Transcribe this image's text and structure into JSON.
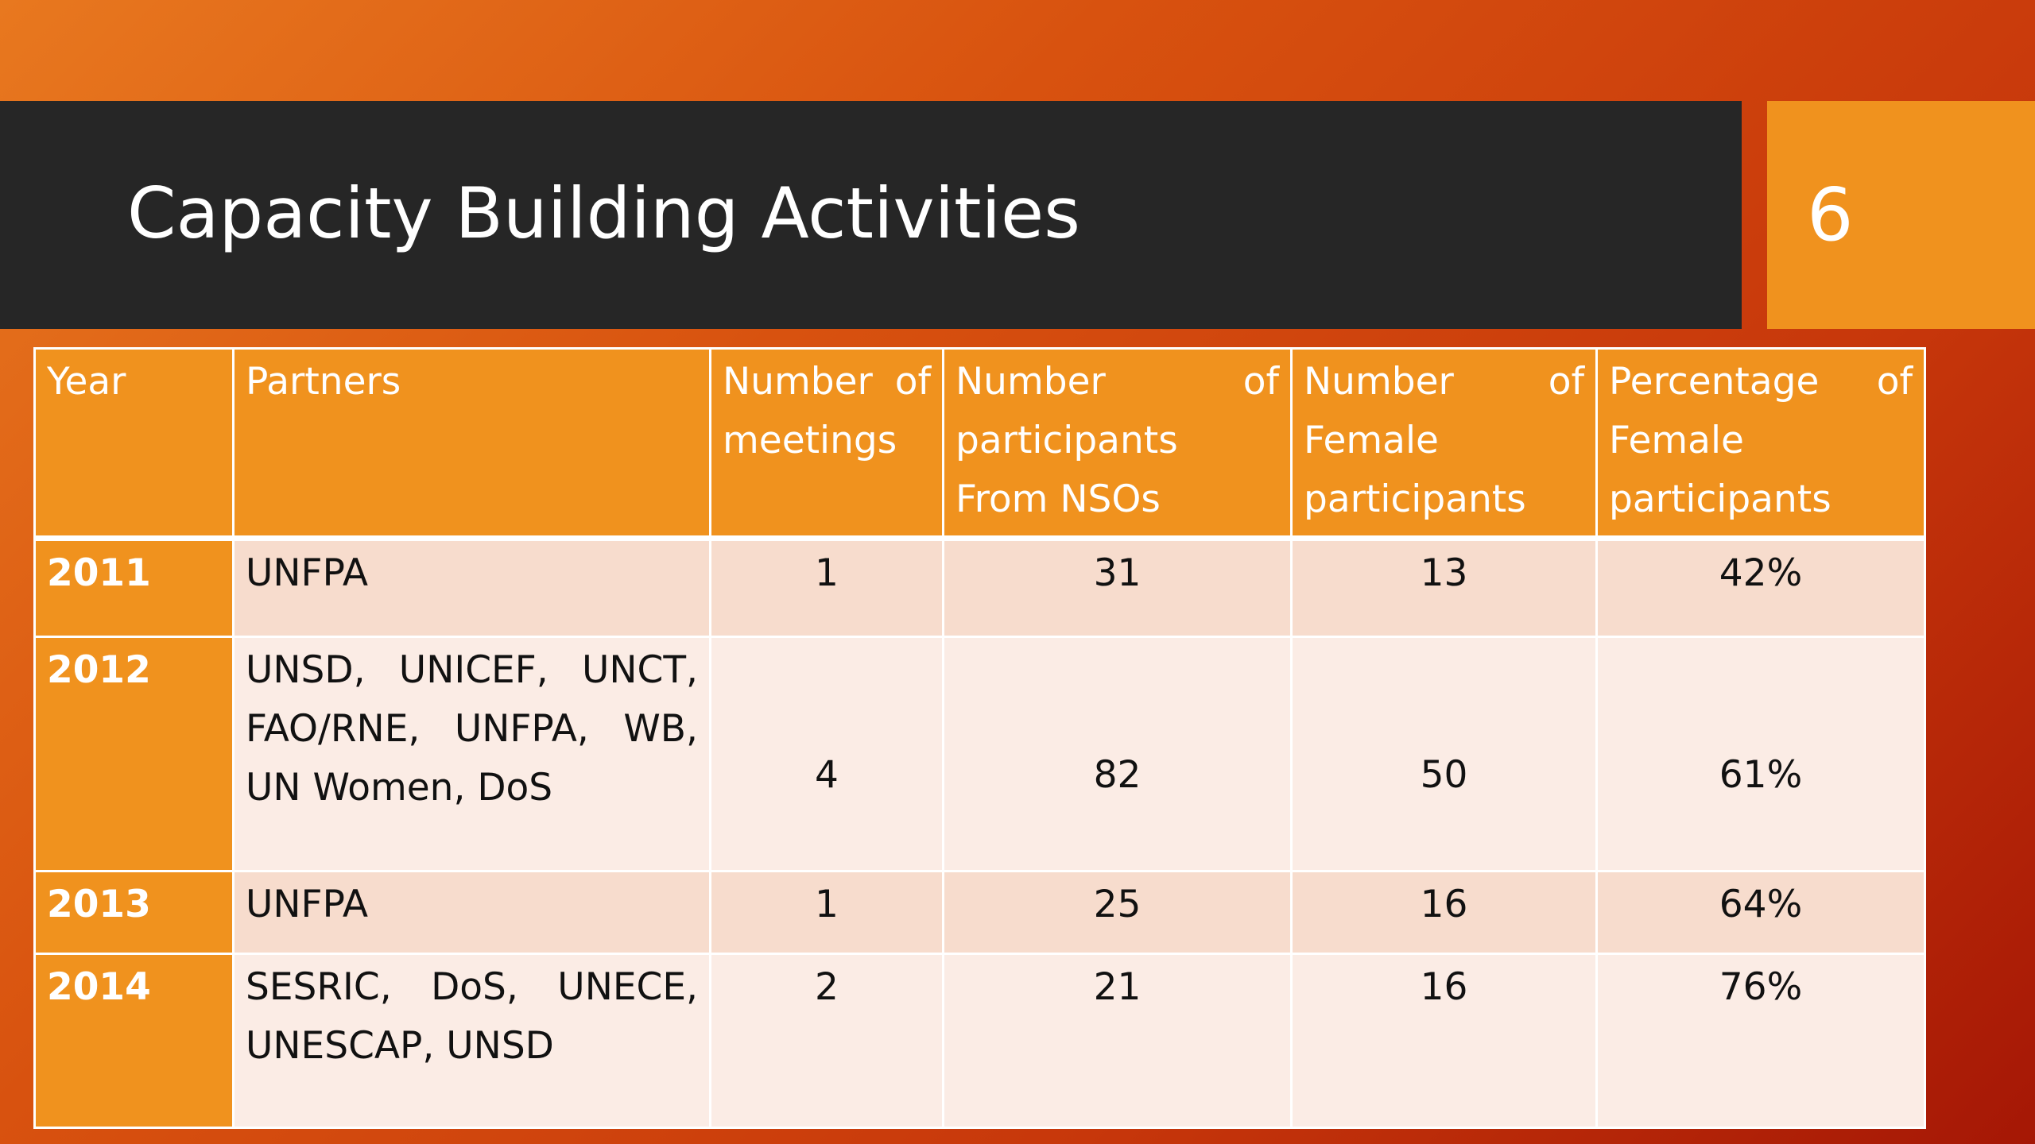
{
  "slide": {
    "title": "Capacity Building Activities",
    "number": "6"
  },
  "table": {
    "headers": [
      "Year",
      "Partners",
      "Number of meetings",
      "Number of participants From NSOs",
      "Number of Female participants",
      "Percentage of Female participants"
    ],
    "rows": [
      {
        "year": "2011",
        "partners": "UNFPA",
        "meetings": "1",
        "participants": "31",
        "female": "13",
        "percentage": "42%"
      },
      {
        "year": "2012",
        "partners": "UNSD, UNICEF, UNCT, FAO/RNE, UNFPA, WB, UN Women, DoS",
        "meetings": "4",
        "participants": "82",
        "female": "50",
        "percentage": "61%"
      },
      {
        "year": "2013",
        "partners": "UNFPA",
        "meetings": "1",
        "participants": "25",
        "female": "16",
        "percentage": "64%"
      },
      {
        "year": "2014",
        "partners": "SESRIC, DoS, UNECE, UNESCAP, UNSD",
        "meetings": "2",
        "participants": "21",
        "female": "16",
        "percentage": "76%"
      }
    ]
  },
  "colors": {
    "title_bar": "#262626",
    "accent": "#f0921e",
    "row_odd": "#f7dccd",
    "row_even": "#fbece5"
  }
}
